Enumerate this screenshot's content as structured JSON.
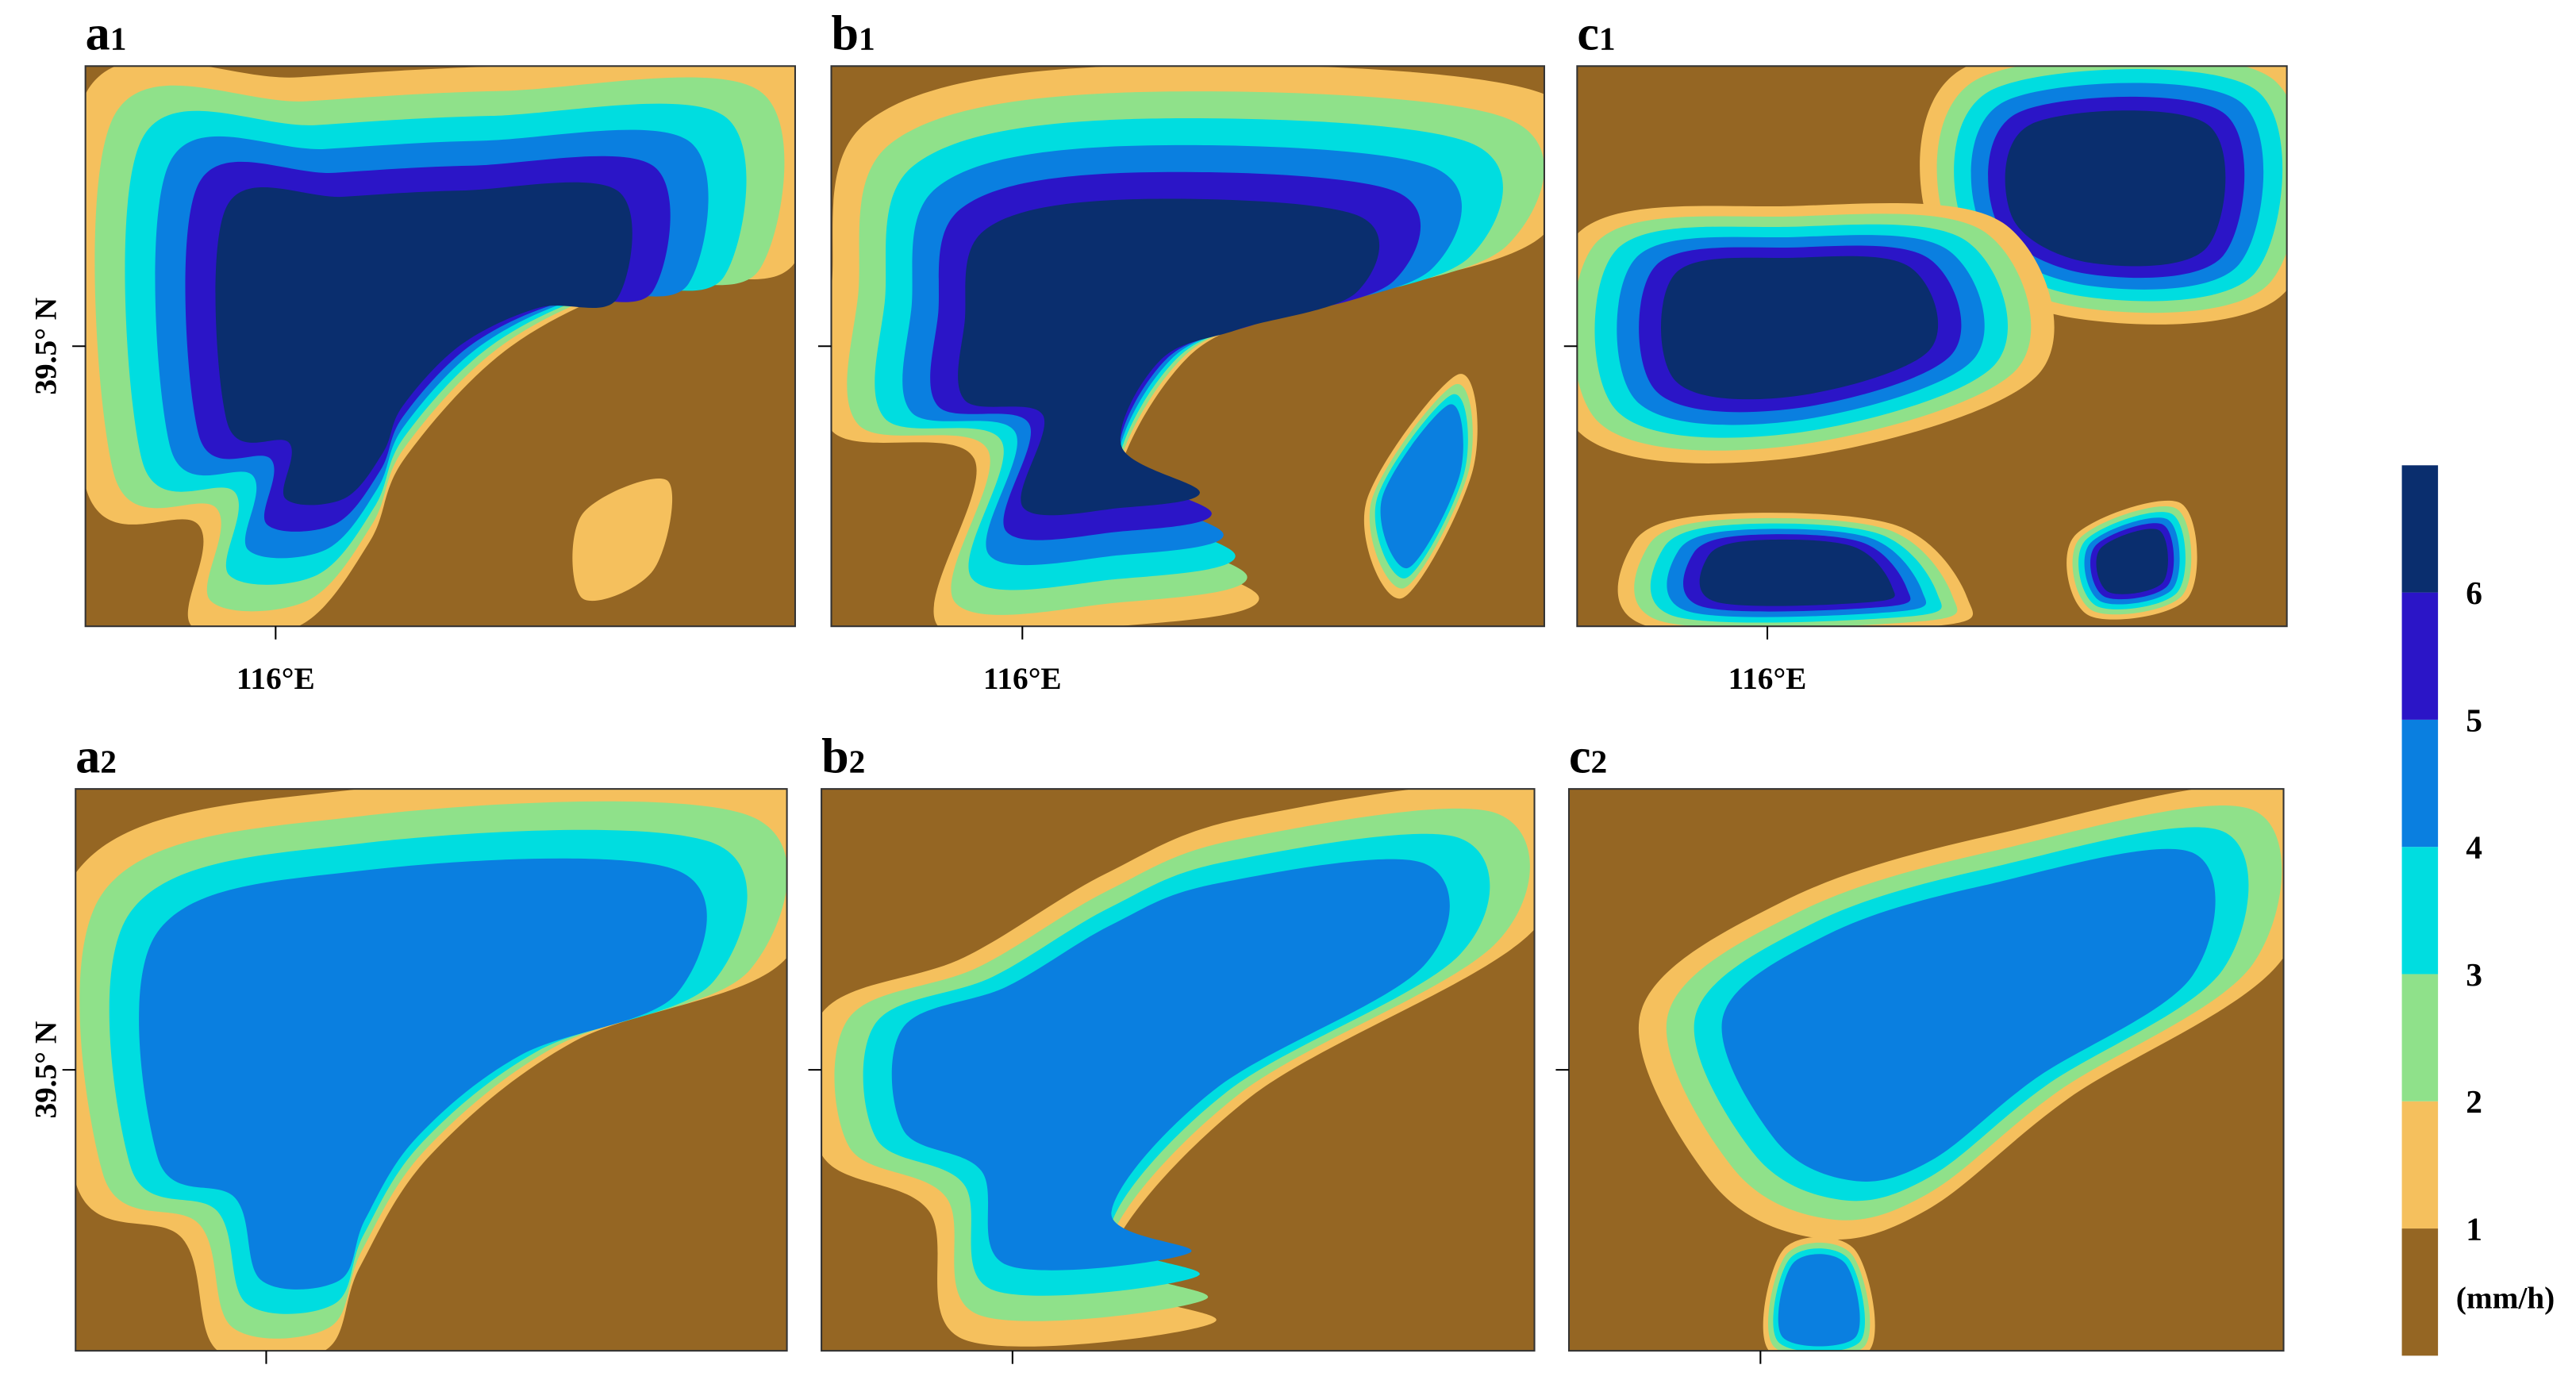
{
  "chart_data": {
    "type": "contour",
    "panels": [
      {
        "letter": "a",
        "sub": "1"
      },
      {
        "letter": "b",
        "sub": "1"
      },
      {
        "letter": "c",
        "sub": "1"
      },
      {
        "letter": "a",
        "sub": "2"
      },
      {
        "letter": "b",
        "sub": "2"
      },
      {
        "letter": "c",
        "sub": "2"
      }
    ],
    "ylabel": "39.5° N",
    "xlabel": "116°E",
    "colorbar": {
      "clim": [
        0,
        7
      ],
      "ticks": [
        1,
        2,
        3,
        4,
        5,
        6
      ],
      "unit": "(mm/h)",
      "colors": [
        "#956623",
        "#f5c05d",
        "#8fe18a",
        "#00dde0",
        "#0a7fe0",
        "#2b15c7",
        "#0a2e6e"
      ]
    }
  }
}
